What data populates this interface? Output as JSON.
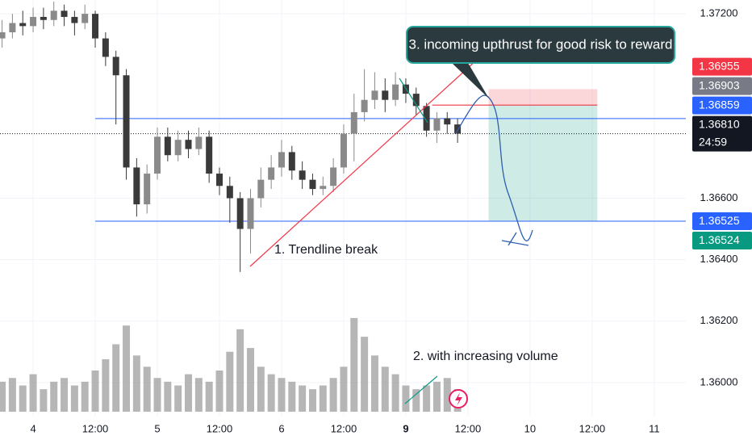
{
  "chart_data": {
    "type": "candlestick",
    "x": [
      -6,
      -4,
      -2,
      0,
      2,
      4,
      6,
      8,
      10,
      12,
      14,
      16,
      18,
      20,
      22,
      24,
      26,
      28,
      30,
      32,
      34,
      36,
      38,
      40,
      42,
      44,
      46,
      48,
      50,
      52,
      54,
      56,
      58,
      60,
      62,
      64,
      66,
      68,
      70,
      72,
      74,
      76,
      78,
      80,
      82
    ],
    "open": [
      1.3712,
      1.3714,
      1.3717,
      1.3716,
      1.3719,
      1.3718,
      1.3721,
      1.3719,
      1.3717,
      1.372,
      1.3712,
      1.3706,
      1.37,
      1.367,
      1.3658,
      1.3668,
      1.368,
      1.3674,
      1.3679,
      1.3676,
      1.368,
      1.3668,
      1.3664,
      1.366,
      1.365,
      1.366,
      1.3666,
      1.367,
      1.3675,
      1.3669,
      1.3666,
      1.3663,
      1.3664,
      1.367,
      1.3681,
      1.3688,
      1.3692,
      1.3695,
      1.3692,
      1.3697,
      1.3694,
      1.369,
      1.3682,
      1.3686,
      1.3684
    ],
    "high": [
      1.3718,
      1.372,
      1.3721,
      1.3722,
      1.3722,
      1.3724,
      1.3723,
      1.3721,
      1.3723,
      1.3721,
      1.3714,
      1.3708,
      1.3702,
      1.3673,
      1.3671,
      1.3683,
      1.3683,
      1.3682,
      1.3682,
      1.3683,
      1.3682,
      1.367,
      1.3667,
      1.3662,
      1.3663,
      1.367,
      1.3674,
      1.3679,
      1.3677,
      1.3672,
      1.3668,
      1.3667,
      1.3673,
      1.3684,
      1.3694,
      1.3702,
      1.3701,
      1.3699,
      1.3701,
      1.3699,
      1.3696,
      1.3691,
      1.3688,
      1.3688,
      1.3686
    ],
    "low": [
      1.3709,
      1.3712,
      1.3713,
      1.3714,
      1.3715,
      1.3716,
      1.3716,
      1.3713,
      1.3715,
      1.3709,
      1.3703,
      1.3684,
      1.3666,
      1.3654,
      1.3655,
      1.3666,
      1.3672,
      1.3672,
      1.3673,
      1.3674,
      1.3665,
      1.3661,
      1.3652,
      1.3636,
      1.3642,
      1.3657,
      1.3663,
      1.3667,
      1.3666,
      1.3663,
      1.3661,
      1.3661,
      1.3662,
      1.3668,
      1.3672,
      1.3685,
      1.3689,
      1.3688,
      1.369,
      1.3691,
      1.3687,
      1.368,
      1.3678,
      1.3681,
      1.3678
    ],
    "close": [
      1.3714,
      1.3717,
      1.3716,
      1.3719,
      1.3718,
      1.3721,
      1.3719,
      1.3717,
      1.372,
      1.3712,
      1.3706,
      1.37,
      1.367,
      1.3658,
      1.3668,
      1.368,
      1.3674,
      1.3679,
      1.3676,
      1.368,
      1.3668,
      1.3664,
      1.366,
      1.365,
      1.366,
      1.3666,
      1.367,
      1.3675,
      1.3669,
      1.3666,
      1.3663,
      1.3664,
      1.367,
      1.3681,
      1.3688,
      1.3692,
      1.3695,
      1.3692,
      1.3697,
      1.3694,
      1.369,
      1.3682,
      1.3686,
      1.3684,
      1.3681
    ],
    "volume": [
      40,
      45,
      35,
      50,
      30,
      40,
      45,
      35,
      40,
      55,
      70,
      90,
      115,
      75,
      60,
      45,
      40,
      35,
      50,
      45,
      40,
      55,
      80,
      110,
      85,
      60,
      50,
      45,
      40,
      35,
      30,
      35,
      45,
      60,
      125,
      100,
      75,
      60,
      50,
      35,
      30,
      35,
      40,
      45,
      30
    ],
    "vlim": [
      0,
      140
    ],
    "up_color": "#8a8a8a",
    "down_color": "#3a3a3a",
    "volume_color": "#9e9e9e",
    "xlim": [
      -6.4,
      126.1
    ],
    "xticks": [
      {
        "value": 0,
        "label": "4"
      },
      {
        "value": 12,
        "label": "12:00"
      },
      {
        "value": 24,
        "label": "5"
      },
      {
        "value": 36,
        "label": "12:00"
      },
      {
        "value": 48,
        "label": "6"
      },
      {
        "value": 60,
        "label": "12:00"
      },
      {
        "value": 72,
        "label": "9"
      },
      {
        "value": 84,
        "label": "12:00"
      },
      {
        "value": 96,
        "label": "10"
      },
      {
        "value": 108,
        "label": "12:00"
      },
      {
        "value": 120,
        "label": "11"
      }
    ],
    "ylim": [
      1.35892,
      1.37245
    ],
    "yticks": [
      {
        "value": 1.372,
        "label": "1.37200"
      },
      {
        "value": 1.366,
        "label": "1.36600"
      },
      {
        "value": 1.364,
        "label": "1.36400"
      },
      {
        "value": 1.362,
        "label": "1.36200"
      },
      {
        "value": 1.36,
        "label": "1.36000"
      }
    ],
    "grid": true,
    "price_tags": [
      {
        "price": 1.36955,
        "color": "#f23645",
        "role": "stop"
      },
      {
        "price": 1.36903,
        "color": "#787b86",
        "role": "entry"
      },
      {
        "price": 1.36859,
        "color": "#2962ff",
        "line": "solid",
        "line_start": 12
      },
      {
        "price": {
          "value": 1.3681,
          "label": "1.36810"
        },
        "color": "#131722",
        "line": "dotted",
        "countdown": "24:59"
      },
      {
        "price": 1.36525,
        "color": "#2962ff",
        "line": "solid",
        "line_start": 12
      },
      {
        "price": 1.36524,
        "color": "#089981",
        "role": "target"
      }
    ],
    "position": {
      "start": 88,
      "end": 109
    },
    "annotations": [
      "1. Trendline break",
      "2. with increasing volume",
      "3. incoming upthrust for good risk to reward"
    ]
  }
}
